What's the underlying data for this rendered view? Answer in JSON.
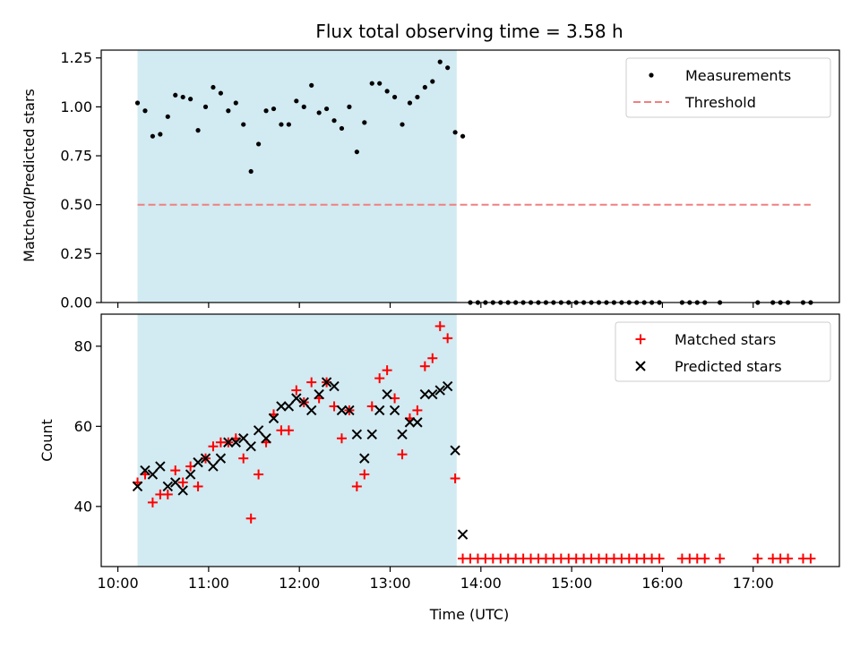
{
  "chart_data": [
    {
      "type": "scatter",
      "title": "Flux total observing time = 3.58 h",
      "xlabel": "",
      "ylabel": "Matched/Predicted stars",
      "ylim": [
        0,
        1.29
      ],
      "xlim": [
        "09:49",
        "17:57"
      ],
      "yticks": [
        "0.00",
        "0.25",
        "0.50",
        "0.75",
        "1.00",
        "1.25"
      ],
      "ytick_values": [
        0,
        0.25,
        0.5,
        0.75,
        1.0,
        1.25
      ],
      "x_tick_values": [
        "10:00",
        "11:00",
        "12:00",
        "13:00",
        "14:00",
        "15:00",
        "16:00",
        "17:00"
      ],
      "grid": false,
      "legend_position": "top-right",
      "observing_window": {
        "start": "10:13",
        "end": "13:44",
        "color": "#add8e6"
      },
      "threshold": {
        "value": 0.5,
        "x_start": "10:13",
        "x_end": "17:38",
        "color": "#f08080"
      },
      "series": [
        {
          "name": "Measurements",
          "marker": "dot",
          "color": "#000000",
          "x": [
            "10:13",
            "10:18",
            "10:23",
            "10:28",
            "10:33",
            "10:38",
            "10:43",
            "10:48",
            "10:53",
            "10:58",
            "11:03",
            "11:08",
            "11:13",
            "11:18",
            "11:23",
            "11:28",
            "11:33",
            "11:38",
            "11:43",
            "11:48",
            "11:53",
            "11:58",
            "12:03",
            "12:08",
            "12:13",
            "12:18",
            "12:23",
            "12:28",
            "12:33",
            "12:38",
            "12:43",
            "12:48",
            "12:53",
            "12:58",
            "13:03",
            "13:08",
            "13:13",
            "13:18",
            "13:23",
            "13:28",
            "13:33",
            "13:38",
            "13:43",
            "13:48",
            "13:53",
            "13:58",
            "14:03",
            "14:08",
            "14:13",
            "14:18",
            "14:23",
            "14:28",
            "14:33",
            "14:38",
            "14:43",
            "14:48",
            "14:53",
            "14:58",
            "15:03",
            "15:08",
            "15:13",
            "15:18",
            "15:23",
            "15:28",
            "15:33",
            "15:38",
            "15:43",
            "15:48",
            "15:53",
            "15:58",
            "16:13",
            "16:18",
            "16:23",
            "16:28",
            "16:38",
            "17:03",
            "17:13",
            "17:18",
            "17:23",
            "17:33",
            "17:38"
          ],
          "y": [
            1.02,
            0.98,
            0.85,
            0.86,
            0.95,
            1.06,
            1.05,
            1.04,
            0.88,
            1.0,
            1.1,
            1.07,
            0.98,
            1.02,
            0.91,
            0.67,
            0.81,
            0.98,
            0.99,
            0.91,
            0.91,
            1.03,
            1.0,
            1.11,
            0.97,
            0.99,
            0.93,
            0.89,
            1.0,
            0.77,
            0.92,
            1.12,
            1.12,
            1.08,
            1.05,
            0.91,
            1.02,
            1.05,
            1.1,
            1.13,
            1.23,
            1.2,
            0.87,
            0.85,
            0,
            0,
            0,
            0,
            0,
            0,
            0,
            0,
            0,
            0,
            0,
            0,
            0,
            0,
            0,
            0,
            0,
            0,
            0,
            0,
            0,
            0,
            0,
            0,
            0,
            0,
            0,
            0,
            0,
            0,
            0,
            0,
            0,
            0,
            0,
            0,
            0
          ]
        },
        {
          "name": "Threshold",
          "marker": "dashed-line",
          "color": "#f08080"
        }
      ]
    },
    {
      "type": "scatter",
      "title": "",
      "xlabel": "Time (UTC)",
      "ylabel": "Count",
      "ylim": [
        25,
        88
      ],
      "xlim": [
        "09:49",
        "17:57"
      ],
      "yticks": [
        "40",
        "60",
        "80"
      ],
      "ytick_values": [
        40,
        60,
        80
      ],
      "xticks": [
        "10:00",
        "11:00",
        "12:00",
        "13:00",
        "14:00",
        "15:00",
        "16:00",
        "17:00"
      ],
      "x_tick_values": [
        "10:00",
        "11:00",
        "12:00",
        "13:00",
        "14:00",
        "15:00",
        "16:00",
        "17:00"
      ],
      "grid": false,
      "legend_position": "top-right",
      "observing_window": {
        "start": "10:13",
        "end": "13:44",
        "color": "#add8e6"
      },
      "series": [
        {
          "name": "Matched stars",
          "marker": "plus",
          "color": "#ff0000",
          "x": [
            "10:13",
            "10:18",
            "10:23",
            "10:28",
            "10:33",
            "10:38",
            "10:43",
            "10:48",
            "10:53",
            "10:58",
            "11:03",
            "11:08",
            "11:13",
            "11:18",
            "11:23",
            "11:28",
            "11:33",
            "11:38",
            "11:43",
            "11:48",
            "11:53",
            "11:58",
            "12:03",
            "12:08",
            "12:13",
            "12:18",
            "12:23",
            "12:28",
            "12:33",
            "12:38",
            "12:43",
            "12:48",
            "12:53",
            "12:58",
            "13:03",
            "13:08",
            "13:13",
            "13:18",
            "13:23",
            "13:28",
            "13:33",
            "13:38",
            "13:43",
            "13:48",
            "13:53",
            "13:58",
            "14:03",
            "14:08",
            "14:13",
            "14:18",
            "14:23",
            "14:28",
            "14:33",
            "14:38",
            "14:43",
            "14:48",
            "14:53",
            "14:58",
            "15:03",
            "15:08",
            "15:13",
            "15:18",
            "15:23",
            "15:28",
            "15:33",
            "15:38",
            "15:43",
            "15:48",
            "15:53",
            "15:58",
            "16:13",
            "16:18",
            "16:23",
            "16:28",
            "16:38",
            "17:03",
            "17:13",
            "17:18",
            "17:23",
            "17:33",
            "17:38"
          ],
          "y": [
            46,
            48,
            41,
            43,
            43,
            49,
            46,
            50,
            45,
            52,
            55,
            56,
            56,
            57,
            52,
            37,
            48,
            56,
            63,
            59,
            59,
            69,
            66,
            71,
            67,
            71,
            65,
            57,
            64,
            45,
            48,
            65,
            72,
            74,
            67,
            53,
            62,
            64,
            75,
            77,
            85,
            82,
            47,
            27,
            27,
            27,
            27,
            27,
            27,
            27,
            27,
            27,
            27,
            27,
            27,
            27,
            27,
            27,
            27,
            27,
            27,
            27,
            27,
            27,
            27,
            27,
            27,
            27,
            27,
            27,
            27,
            27,
            27,
            27,
            27,
            27,
            27,
            27,
            27,
            27,
            27
          ]
        },
        {
          "name": "Predicted stars",
          "marker": "x",
          "color": "#000000",
          "x": [
            "10:13",
            "10:18",
            "10:23",
            "10:28",
            "10:33",
            "10:38",
            "10:43",
            "10:48",
            "10:53",
            "10:58",
            "11:03",
            "11:08",
            "11:13",
            "11:18",
            "11:23",
            "11:28",
            "11:33",
            "11:38",
            "11:43",
            "11:48",
            "11:53",
            "11:58",
            "12:03",
            "12:08",
            "12:13",
            "12:18",
            "12:23",
            "12:28",
            "12:33",
            "12:38",
            "12:43",
            "12:48",
            "12:53",
            "12:58",
            "13:03",
            "13:08",
            "13:13",
            "13:18",
            "13:23",
            "13:28",
            "13:33",
            "13:38",
            "13:43",
            "13:48"
          ],
          "y": [
            45,
            49,
            48,
            50,
            45,
            46,
            44,
            48,
            51,
            52,
            50,
            52,
            56,
            56,
            57,
            55,
            59,
            57,
            62,
            65,
            65,
            67,
            66,
            64,
            68,
            71,
            70,
            64,
            64,
            58,
            52,
            58,
            64,
            68,
            64,
            58,
            61,
            61,
            68,
            68,
            69,
            70,
            54,
            33
          ]
        }
      ]
    }
  ]
}
